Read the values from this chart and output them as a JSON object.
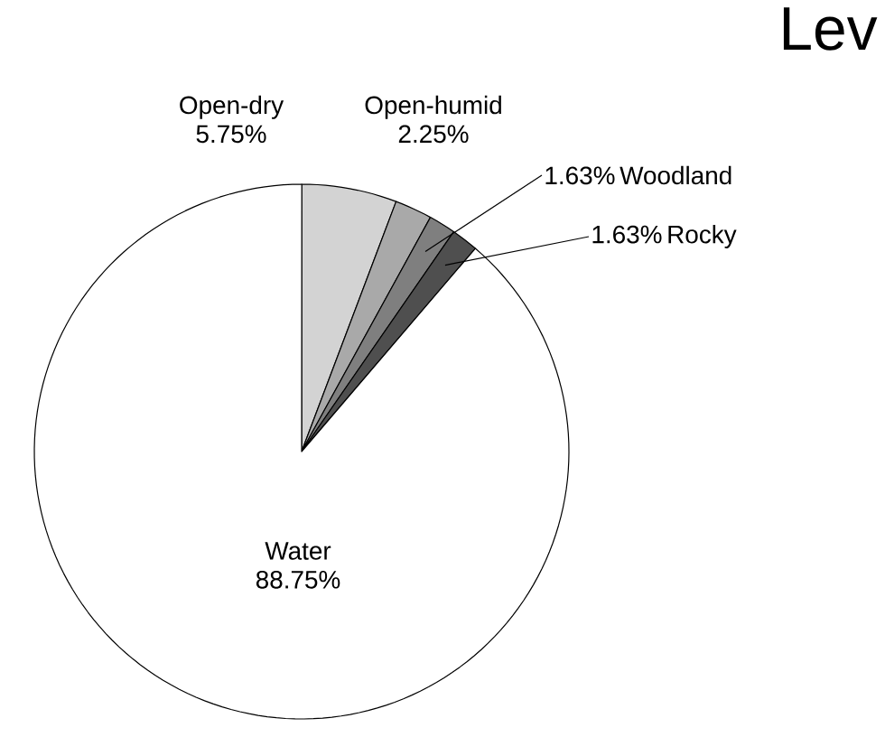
{
  "chart_data": {
    "type": "pie",
    "title": "Lev",
    "categories": [
      "Open-dry",
      "Open-humid",
      "Woodland",
      "Rocky",
      "Water"
    ],
    "values": [
      5.75,
      2.25,
      1.63,
      1.63,
      88.75
    ],
    "value_labels": [
      "5.75%",
      "2.25%",
      "1.63%",
      "1.63%",
      "88.75%"
    ],
    "colors": [
      "#d3d3d3",
      "#a9a9a9",
      "#7f7f7f",
      "#4f4f4f",
      "#ffffff"
    ]
  }
}
